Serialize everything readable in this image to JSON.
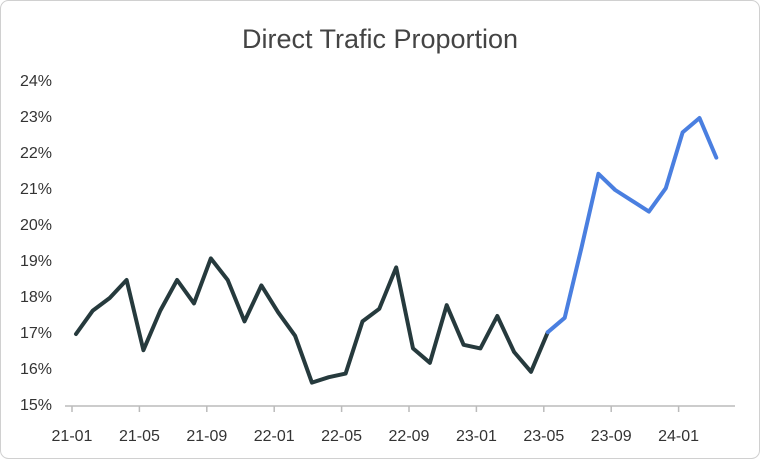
{
  "chart_data": {
    "type": "line",
    "title": "Direct Trafic Proportion",
    "categories": [
      "21-01",
      null,
      null,
      null,
      "21-05",
      null,
      null,
      null,
      "21-09",
      null,
      null,
      null,
      "22-01",
      null,
      null,
      null,
      "22-05",
      null,
      null,
      null,
      "22-09",
      null,
      null,
      null,
      "23-01",
      null,
      null,
      null,
      "23-05",
      null,
      null,
      null,
      "23-09",
      null,
      null,
      null,
      "24-01",
      null,
      null
    ],
    "series": [
      {
        "color": "#263a3d",
        "values": [
          17.0,
          17.65,
          18.0,
          18.5,
          16.55,
          17.65,
          18.5,
          17.85,
          19.1,
          18.5,
          17.35,
          18.35,
          17.6,
          16.95,
          15.65,
          15.8,
          15.9,
          17.35,
          17.7,
          18.85,
          16.6,
          16.2,
          17.8,
          16.7,
          16.6,
          17.5,
          16.5,
          15.95,
          17.05,
          null,
          null,
          null,
          null,
          null,
          null,
          null,
          null,
          null,
          null
        ]
      },
      {
        "color": "#4a7fe0",
        "values": [
          null,
          null,
          null,
          null,
          null,
          null,
          null,
          null,
          null,
          null,
          null,
          null,
          null,
          null,
          null,
          null,
          null,
          null,
          null,
          null,
          null,
          null,
          null,
          null,
          null,
          null,
          null,
          null,
          17.05,
          17.45,
          19.4,
          21.45,
          21.0,
          20.7,
          20.4,
          21.05,
          22.6,
          23.0,
          21.9
        ]
      }
    ],
    "ylim": [
      15,
      24
    ],
    "yticks": [
      {
        "value": 15,
        "label": "15%"
      },
      {
        "value": 16,
        "label": "16%"
      },
      {
        "value": 17,
        "label": "17%"
      },
      {
        "value": 18,
        "label": "18%"
      },
      {
        "value": 19,
        "label": "19%"
      },
      {
        "value": 20,
        "label": "20%"
      },
      {
        "value": 21,
        "label": "21%"
      },
      {
        "value": 22,
        "label": "22%"
      },
      {
        "value": 23,
        "label": "23%"
      },
      {
        "value": 24,
        "label": "24%"
      }
    ],
    "grid": false
  }
}
